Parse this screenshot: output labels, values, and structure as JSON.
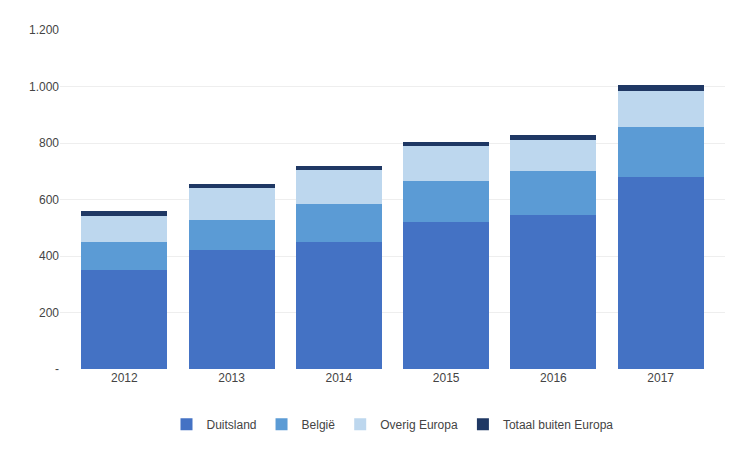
{
  "chart_data": {
    "type": "bar",
    "stacked": true,
    "categories": [
      "2012",
      "2013",
      "2014",
      "2015",
      "2016",
      "2017"
    ],
    "series": [
      {
        "name": "Duitsland",
        "color": "#4472C4",
        "values": [
          350,
          420,
          450,
          520,
          545,
          680
        ]
      },
      {
        "name": "België",
        "color": "#5B9BD5",
        "values": [
          100,
          108,
          135,
          145,
          155,
          175
        ]
      },
      {
        "name": "Overig Europa",
        "color": "#BDD7EE",
        "values": [
          92,
          112,
          120,
          125,
          112,
          130
        ]
      },
      {
        "name": "Totaal buiten Europa",
        "color": "#1F3864",
        "values": [
          18,
          15,
          15,
          15,
          15,
          20
        ]
      }
    ],
    "ylim": [
      0,
      1200
    ],
    "yticks": [
      {
        "value": 0,
        "label": "-"
      },
      200,
      400,
      600,
      800,
      {
        "value": 1000,
        "label": "1.000"
      },
      {
        "value": 1200,
        "label": "1.200"
      }
    ],
    "grid": true,
    "legend": "bottom"
  }
}
